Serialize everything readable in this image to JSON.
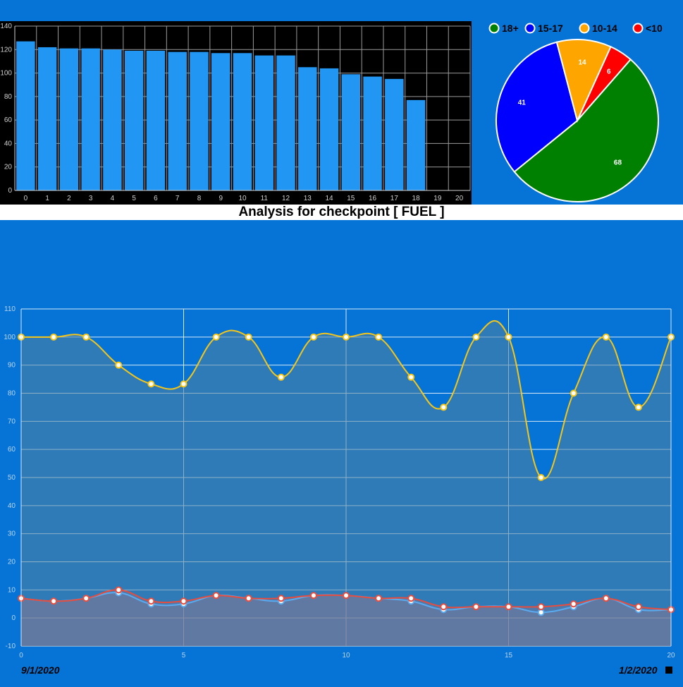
{
  "title": "Analysis for checkpoint [ FUEL ]",
  "date_start": "9/1/2020",
  "date_end": "1/2/2020",
  "chart_data": [
    {
      "type": "bar",
      "categories": [
        "0",
        "1",
        "2",
        "3",
        "4",
        "5",
        "6",
        "7",
        "8",
        "9",
        "10",
        "11",
        "12",
        "13",
        "14",
        "15",
        "16",
        "17",
        "18",
        "19",
        "20"
      ],
      "values": [
        127,
        122,
        121,
        121,
        120,
        119,
        119,
        118,
        118,
        117,
        117,
        115,
        115,
        105,
        104,
        99,
        97,
        95,
        77,
        null,
        null
      ],
      "ylim": [
        0,
        140
      ],
      "yticks": [
        0,
        20,
        40,
        60,
        80,
        100,
        120,
        140
      ],
      "grid": true,
      "color": "#2196f3",
      "background": "#000000"
    },
    {
      "type": "pie",
      "labels": [
        "18+",
        "15-17",
        "10-14",
        "<10"
      ],
      "values": [
        68,
        41,
        14,
        6
      ],
      "colors": [
        "#008000",
        "#0000ff",
        "#ffa500",
        "#ff0000"
      ],
      "legend": "top"
    },
    {
      "type": "line",
      "x": [
        0,
        1,
        2,
        3,
        4,
        5,
        6,
        7,
        8,
        9,
        10,
        11,
        12,
        13,
        14,
        15,
        16,
        17,
        18,
        19,
        20
      ],
      "series": [
        {
          "values": [
            100,
            100,
            100,
            90,
            83.3,
            83.3,
            100,
            100,
            85.7,
            100,
            100,
            100,
            85.7,
            75,
            100,
            100,
            50,
            80,
            100,
            75,
            100
          ],
          "color": "#f5c518"
        },
        {
          "values": [
            7,
            6,
            7,
            9,
            5,
            5,
            8,
            7,
            6,
            8,
            8,
            7,
            6,
            3,
            4,
            4,
            2,
            4,
            7,
            3,
            3
          ],
          "color": "#5aaaf0"
        },
        {
          "values": [
            7,
            6,
            7,
            10,
            6,
            6,
            8,
            7,
            7,
            8,
            8,
            7,
            7,
            4,
            4,
            4,
            4,
            5,
            7,
            4,
            3
          ],
          "color": "#e84c3d"
        }
      ],
      "ylim": [
        -10,
        110
      ],
      "yticks": [
        -10,
        0,
        10,
        20,
        30,
        40,
        50,
        60,
        70,
        80,
        90,
        100,
        110
      ],
      "xticks": [
        0,
        5,
        10,
        15,
        20
      ],
      "grid": true
    }
  ]
}
